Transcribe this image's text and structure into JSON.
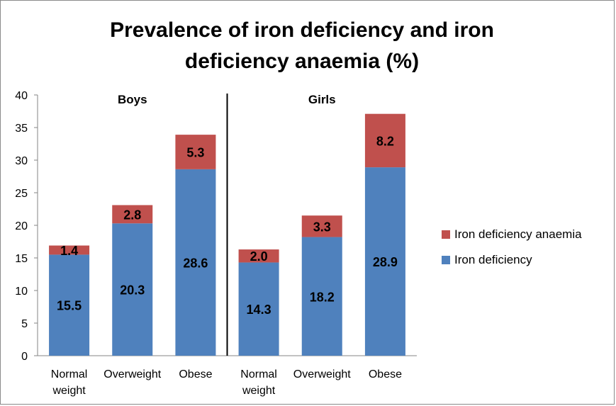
{
  "chart_data": {
    "type": "bar",
    "stacked": true,
    "title": "Prevalence of iron deficiency and iron deficiency anaemia (%)",
    "title_lines": [
      "Prevalence of iron deficiency and iron",
      "deficiency anaemia (%)"
    ],
    "groups": [
      {
        "name": "Boys",
        "categories": [
          "Normal weight",
          "Overweight",
          "Obese"
        ]
      },
      {
        "name": "Girls",
        "categories": [
          "Normal weight",
          "Overweight",
          "Obese"
        ]
      }
    ],
    "category_label_lines": [
      [
        "Normal",
        "weight"
      ],
      [
        "Overweight"
      ],
      [
        "Obese"
      ],
      [
        "Normal",
        "weight"
      ],
      [
        "Overweight"
      ],
      [
        "Obese"
      ]
    ],
    "series": [
      {
        "name": "Iron deficiency",
        "color": "#4f81bd",
        "values": [
          15.5,
          20.3,
          28.6,
          14.3,
          18.2,
          28.9
        ]
      },
      {
        "name": "Iron deficiency anaemia",
        "color": "#c0504d",
        "values": [
          1.4,
          2.8,
          5.3,
          2.0,
          3.3,
          8.2
        ]
      }
    ],
    "data_labels": [
      [
        "15.5",
        "20.3",
        "28.6",
        "14.3",
        "18.2",
        "28.9"
      ],
      [
        "1.4",
        "2.8",
        "5.3",
        "2.0",
        "3.3",
        "8.2"
      ]
    ],
    "ylim": [
      0,
      40
    ],
    "yticks": [
      "0",
      "5",
      "10",
      "15",
      "20",
      "25",
      "30",
      "35",
      "40"
    ],
    "xlabel": "",
    "ylabel": "",
    "grid": false,
    "legend_position": "right",
    "legend_order": [
      "Iron deficiency anaemia",
      "Iron deficiency"
    ]
  }
}
